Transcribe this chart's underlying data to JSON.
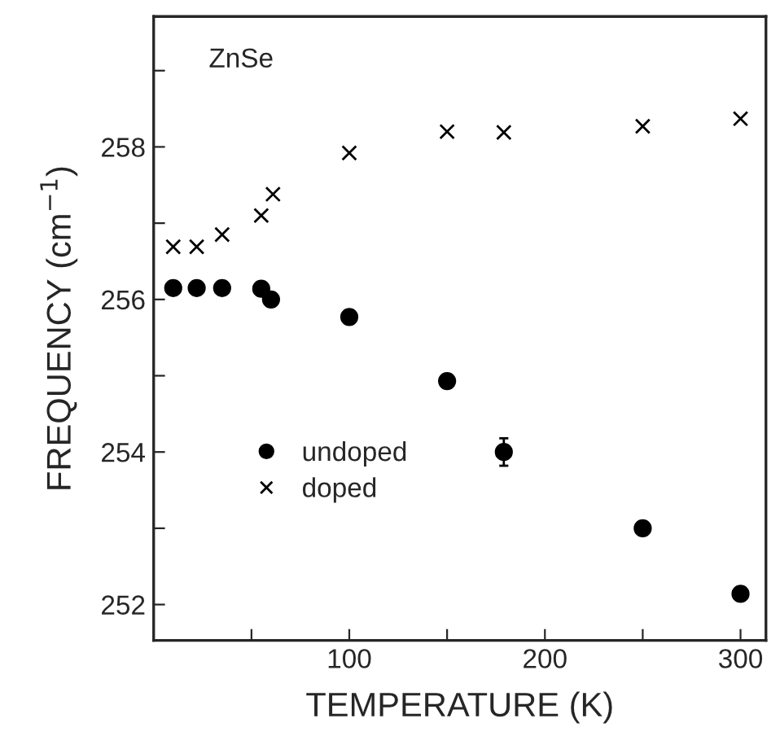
{
  "chart_data": {
    "type": "scatter",
    "xlabel": "TEMPERATURE (K)",
    "ylabel": "FREQUENCY (cm$^{−1}$)",
    "annotations": [
      "ZnSe"
    ],
    "series": [
      {
        "name": "undoped",
        "color": "#000000",
        "marker": "circle",
        "x": [
          10,
          22,
          35,
          55,
          60,
          100,
          150,
          179,
          250,
          300
        ],
        "values": [
          256.15,
          256.15,
          256.15,
          256.14,
          256.0,
          255.77,
          254.93,
          254.0,
          253.0,
          252.14
        ],
        "errors": [
          null,
          null,
          null,
          null,
          null,
          null,
          null,
          0.18,
          null,
          null
        ]
      },
      {
        "name": "doped",
        "color": "#000000",
        "marker": "cross",
        "x": [
          10,
          22,
          35,
          55,
          61,
          100,
          150,
          179,
          250,
          300
        ],
        "values": [
          256.69,
          256.69,
          256.85,
          257.1,
          257.38,
          257.92,
          258.2,
          258.19,
          258.27,
          258.37
        ]
      }
    ],
    "xlim": [
      0,
      313
    ],
    "ylim": [
      251.53,
      259.71
    ],
    "xticks": [
      {
        "value": 50,
        "label": null
      },
      100,
      {
        "value": 150,
        "label": null
      },
      200,
      {
        "value": 250,
        "label": null
      },
      300
    ],
    "yticks": [
      252,
      {
        "value": 253,
        "label": null
      },
      254,
      {
        "value": 255,
        "label": null
      },
      256,
      {
        "value": 257,
        "label": null
      },
      258,
      {
        "value": 259,
        "label": null
      }
    ],
    "legend": "left",
    "grid": false
  }
}
